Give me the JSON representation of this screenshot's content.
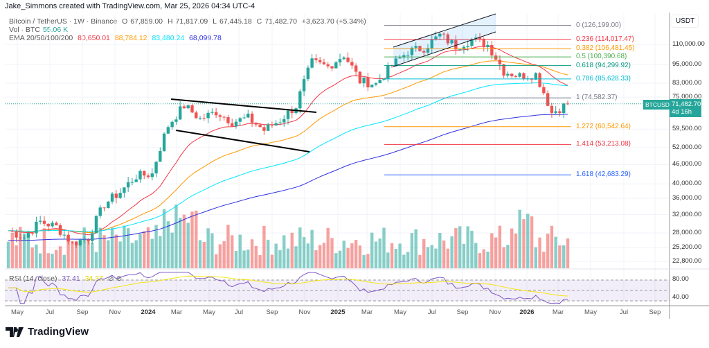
{
  "header": {
    "attribution": "Jake_Simmons created with TradingView.com, Mar 25, 2026 04:34 UTC-4"
  },
  "legend": {
    "symbol": "Bitcoin / TetherUS · 1W · Binance",
    "open_label": "O",
    "open": "67,859.00",
    "high_label": "H",
    "high": "71,817.09",
    "low_label": "L",
    "low": "67,445.18",
    "close_label": "C",
    "close": "71,482.70",
    "change": "+3,623.70 (+5.34%)",
    "vol_label": "Vol · BTC",
    "vol_value": "55.06 K",
    "ema_label": "EMA 20/50/100/200",
    "ema20": "80,650.01",
    "ema50": "88,784.12",
    "ema100": "83,480.24",
    "ema200": "68,099.78",
    "rsi_label": "RSI (14, close)",
    "rsi": "37.41",
    "rsi_ma": "34.37"
  },
  "colors": {
    "up": "#26a69a",
    "down": "#ef5350",
    "ema20": "#f23645",
    "ema50": "#ff9800",
    "ema100": "#00e5ff",
    "ema200": "#3030e0",
    "rsi": "#7e57c2",
    "rsi_ma": "#f5e50f"
  },
  "price_axis": {
    "currency": "USDT",
    "ticks": [
      "110,000.00",
      "95,000.00",
      "83,000.00",
      "75,000.00",
      "59,500.00",
      "52,000.00",
      "46,000.00",
      "40,000.00",
      "36,000.00",
      "32,000.00",
      "28,000.00",
      "25,200.00",
      "22,800.00"
    ],
    "rsi_ticks": [
      "80.00",
      "40.00"
    ]
  },
  "price_tag": {
    "symbol": "BTCUSDT",
    "price": "71,482.70",
    "countdown": "4d 16h"
  },
  "fib_levels": [
    {
      "label": "0 (126,199.00)",
      "price": 126199,
      "color": "#787b86"
    },
    {
      "label": "0.236 (114,017.47)",
      "price": 114017.47,
      "color": "#f23645"
    },
    {
      "label": "0.382 (106,481.45)",
      "price": 106481.45,
      "color": "#ff9800"
    },
    {
      "label": "0.5 (100,390.68)",
      "price": 100390.68,
      "color": "#4caf50"
    },
    {
      "label": "0.618 (94,299.92)",
      "price": 94299.92,
      "color": "#089981"
    },
    {
      "label": "0.786 (85,628.33)",
      "price": 85628.33,
      "color": "#00bcd4"
    },
    {
      "label": "1 (74,582.37)",
      "price": 74582.37,
      "color": "#787b86"
    },
    {
      "label": "1.272 (60,542.64)",
      "price": 60542.64,
      "color": "#ff9800"
    },
    {
      "label": "1.414 (53,213.08)",
      "price": 53213.08,
      "color": "#f23645"
    },
    {
      "label": "1.618 (42,683.29)",
      "price": 42683.29,
      "color": "#2962ff"
    }
  ],
  "x_axis": {
    "ticks": [
      "May",
      "Jul",
      "Sep",
      "Nov",
      "2024",
      "Mar",
      "May",
      "Jul",
      "Sep",
      "Nov",
      "2025",
      "Mar",
      "May",
      "Jul",
      "Sep",
      "Nov",
      "2026",
      "Mar",
      "May",
      "Jul",
      "Sep"
    ]
  },
  "chart_data": {
    "type": "candlestick",
    "scale": "log",
    "grid": true,
    "x": [
      "2023-04",
      "2023-05",
      "2023-06",
      "2023-07",
      "2023-08",
      "2023-09",
      "2023-10",
      "2023-11",
      "2023-12",
      "2024-01",
      "2024-02",
      "2024-03",
      "2024-04",
      "2024-05",
      "2024-06",
      "2024-07",
      "2024-08",
      "2024-09",
      "2024-10",
      "2024-11",
      "2024-12",
      "2025-01",
      "2025-02",
      "2025-03",
      "2025-04",
      "2025-05",
      "2025-06",
      "2025-07",
      "2025-08",
      "2025-09",
      "2025-10",
      "2025-11",
      "2025-12",
      "2026-01",
      "2026-02",
      "2026-03"
    ],
    "close_approx": [
      28500,
      27200,
      30400,
      29300,
      26000,
      27000,
      34500,
      37700,
      42300,
      43000,
      61000,
      70500,
      64000,
      67500,
      62700,
      64500,
      59000,
      63500,
      70300,
      96500,
      93500,
      102000,
      84300,
      82500,
      94200,
      104500,
      107200,
      117500,
      108500,
      114000,
      109500,
      90500,
      87500,
      88500,
      67000,
      71482.7
    ],
    "ylim": [
      22000,
      130000
    ]
  },
  "brand": {
    "name": "TradingView"
  }
}
